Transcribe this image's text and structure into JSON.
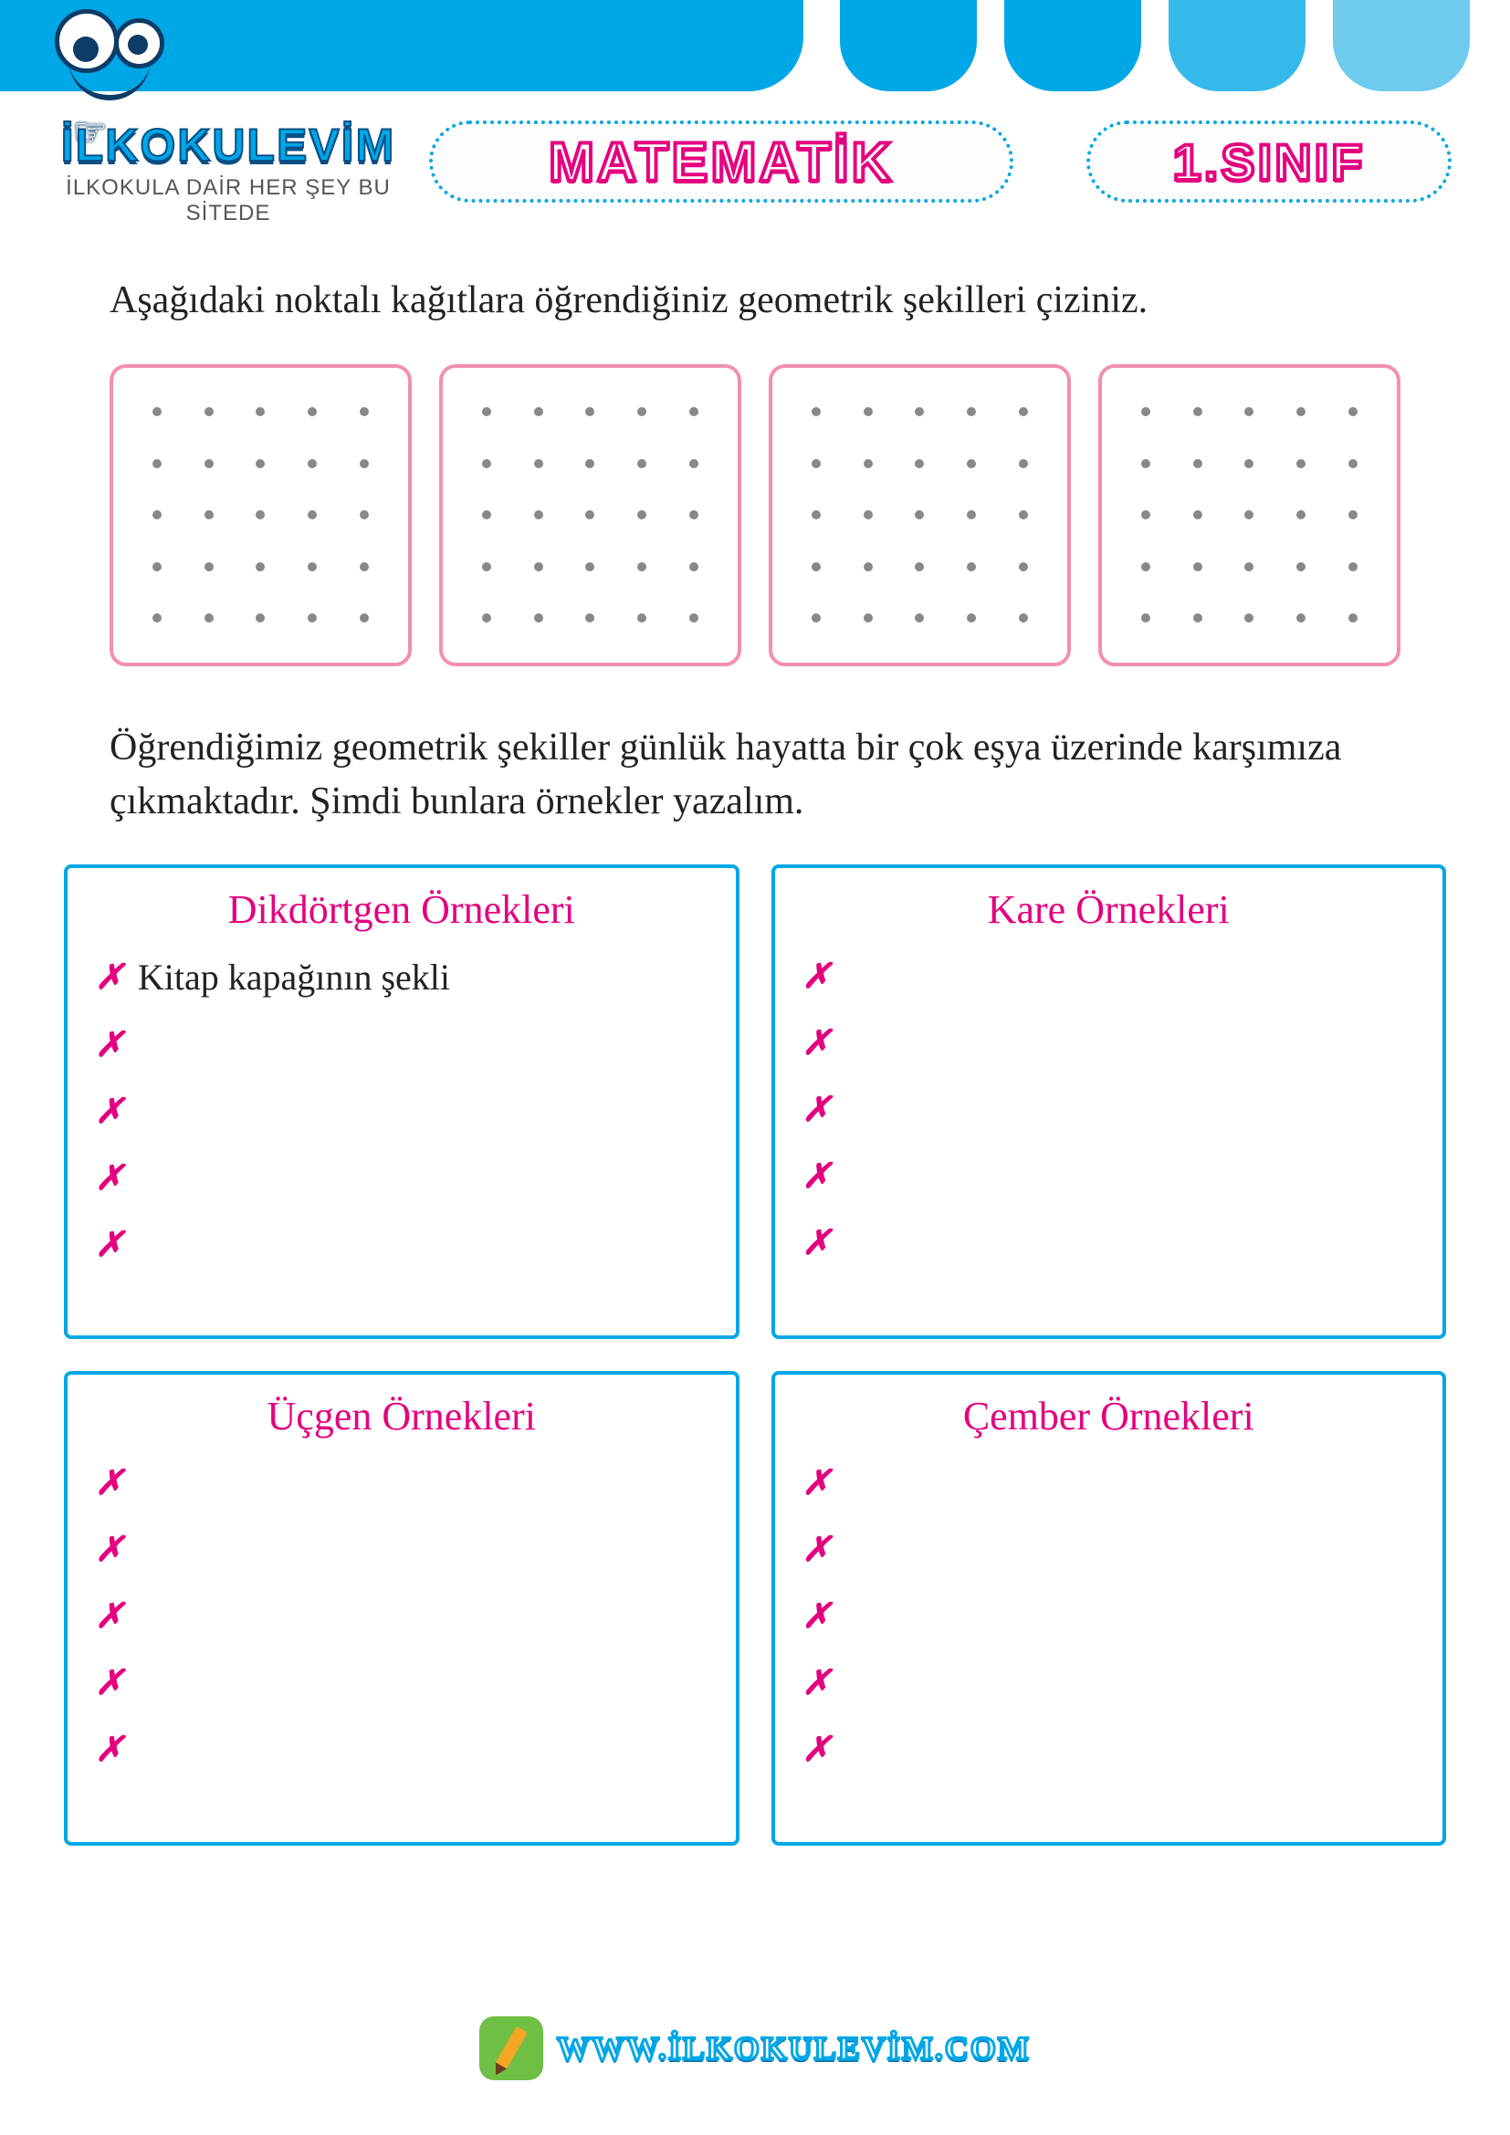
{
  "colors": {
    "primary_blue": "#00a7e6",
    "tab_mid": "#35b9ea",
    "tab_light": "#6ecbee",
    "magenta": "#e4007f",
    "pink_border": "#f28fb3",
    "dot": "#888888",
    "text": "#222222",
    "footer_green": "#6fbf44"
  },
  "brand": {
    "name": "İLKOKULEVİM",
    "tagline": "İLKOKULA DAİR HER ŞEY BU SİTEDE"
  },
  "subject_label": "MATEMATİK",
  "grade_label": "1.SINIF",
  "instruction_1": "Aşağıdaki noktalı kağıtlara öğrendiğiniz geometrik şekilleri çiziniz.",
  "dot_grid": {
    "count": 4,
    "rows": 5,
    "cols": 5,
    "border_color": "#f28fb3",
    "dot_color": "#888888"
  },
  "instruction_2": "Öğrendiğimiz geometrik şekiller günlük hayatta bir çok eşya üzerinde karşımıza çıkmaktadır. Şimdi bunlara örnekler yazalım.",
  "example_boxes": [
    {
      "title": "Dikdörtgen Örnekleri",
      "items": [
        "Kitap kapağının şekli",
        "",
        "",
        "",
        ""
      ]
    },
    {
      "title": "Kare Örnekleri",
      "items": [
        "",
        "",
        "",
        "",
        ""
      ]
    },
    {
      "title": "Üçgen Örnekleri",
      "items": [
        "",
        "",
        "",
        "",
        ""
      ]
    },
    {
      "title": "Çember Örnekleri",
      "items": [
        "",
        "",
        "",
        "",
        ""
      ]
    }
  ],
  "bullet_symbol": "✗",
  "footer_url": "WWW.İLKOKULEVİM.COM"
}
